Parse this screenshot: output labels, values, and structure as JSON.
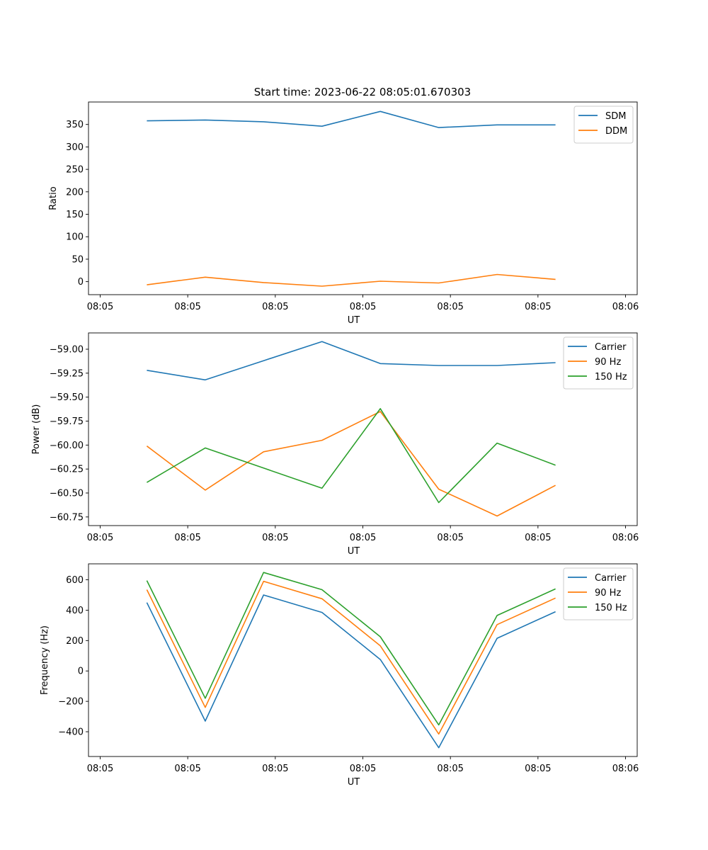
{
  "figure": {
    "title": "Start time: 2023-06-22 08:05:01.670303"
  },
  "chart_data": [
    {
      "type": "line",
      "xlabel": "UT",
      "ylabel": "Ratio",
      "x": [
        0.8,
        1.8,
        2.8,
        3.8,
        4.8,
        5.8,
        6.8,
        7.8
      ],
      "xlim": [
        -0.2,
        9.2
      ],
      "xticks": [
        {
          "value": 0,
          "label": "08:05"
        },
        {
          "value": 1.5,
          "label": "08:05"
        },
        {
          "value": 3,
          "label": "08:05"
        },
        {
          "value": 4.5,
          "label": "08:05"
        },
        {
          "value": 6,
          "label": "08:05"
        },
        {
          "value": 7.5,
          "label": "08:05"
        },
        {
          "value": 9,
          "label": "08:06"
        }
      ],
      "ylim": [
        -29,
        400
      ],
      "yticks": [
        0,
        50,
        100,
        150,
        200,
        250,
        300,
        350
      ],
      "ytick_labels": [
        "0",
        "50",
        "100",
        "150",
        "200",
        "250",
        "300",
        "350"
      ],
      "legend": "top-right",
      "series": [
        {
          "name": "SDM",
          "color": "#1f77b4",
          "values": [
            358,
            360,
            356,
            346,
            379,
            343,
            349,
            349
          ]
        },
        {
          "name": "DDM",
          "color": "#ff7f0e",
          "values": [
            -7,
            10,
            -2,
            -10,
            1,
            -3,
            16,
            5
          ]
        }
      ]
    },
    {
      "type": "line",
      "xlabel": "UT",
      "ylabel": "Power (dB)",
      "x": [
        0.8,
        1.8,
        2.8,
        3.8,
        4.8,
        5.8,
        6.8,
        7.8
      ],
      "xlim": [
        -0.2,
        9.2
      ],
      "xticks": [
        {
          "value": 0,
          "label": "08:05"
        },
        {
          "value": 1.5,
          "label": "08:05"
        },
        {
          "value": 3,
          "label": "08:05"
        },
        {
          "value": 4.5,
          "label": "08:05"
        },
        {
          "value": 6,
          "label": "08:05"
        },
        {
          "value": 7.5,
          "label": "08:05"
        },
        {
          "value": 9,
          "label": "08:06"
        }
      ],
      "ylim": [
        -60.84,
        -58.83
      ],
      "yticks": [
        -59.0,
        -59.25,
        -59.5,
        -59.75,
        -60.0,
        -60.25,
        -60.5,
        -60.75
      ],
      "ytick_labels": [
        "−59.00",
        "−59.25",
        "−59.50",
        "−59.75",
        "−60.00",
        "−60.25",
        "−60.50",
        "−60.75"
      ],
      "legend": "top-right",
      "series": [
        {
          "name": "Carrier",
          "color": "#1f77b4",
          "values": [
            -59.22,
            -59.32,
            -59.12,
            -58.92,
            -59.15,
            -59.17,
            -59.17,
            -59.14
          ]
        },
        {
          "name": "90 Hz",
          "color": "#ff7f0e",
          "values": [
            -60.01,
            -60.47,
            -60.07,
            -59.95,
            -59.65,
            -60.46,
            -60.74,
            -60.42
          ]
        },
        {
          "name": "150 Hz",
          "color": "#2ca02c",
          "values": [
            -60.39,
            -60.03,
            -60.24,
            -60.45,
            -59.62,
            -60.6,
            -59.98,
            -60.21
          ]
        }
      ]
    },
    {
      "type": "line",
      "xlabel": "UT",
      "ylabel": "Frequency (Hz)",
      "x": [
        0.8,
        1.8,
        2.8,
        3.8,
        4.8,
        5.8,
        6.8,
        7.8
      ],
      "xlim": [
        -0.2,
        9.2
      ],
      "xticks": [
        {
          "value": 0,
          "label": "08:05"
        },
        {
          "value": 1.5,
          "label": "08:05"
        },
        {
          "value": 3,
          "label": "08:05"
        },
        {
          "value": 4.5,
          "label": "08:05"
        },
        {
          "value": 6,
          "label": "08:05"
        },
        {
          "value": 7.5,
          "label": "08:05"
        },
        {
          "value": 9,
          "label": "08:06"
        }
      ],
      "ylim": [
        -563,
        705
      ],
      "yticks": [
        600,
        400,
        200,
        0,
        -200,
        -400
      ],
      "ytick_labels": [
        "600",
        "400",
        "200",
        "0",
        "−200",
        "−400"
      ],
      "legend": "top-right",
      "series": [
        {
          "name": "Carrier",
          "color": "#1f77b4",
          "values": [
            450,
            -330,
            500,
            385,
            75,
            -505,
            215,
            390
          ]
        },
        {
          "name": "90 Hz",
          "color": "#ff7f0e",
          "values": [
            535,
            -240,
            590,
            475,
            165,
            -415,
            305,
            480
          ]
        },
        {
          "name": "150 Hz",
          "color": "#2ca02c",
          "values": [
            595,
            -180,
            648,
            535,
            225,
            -355,
            365,
            540
          ]
        }
      ]
    }
  ]
}
